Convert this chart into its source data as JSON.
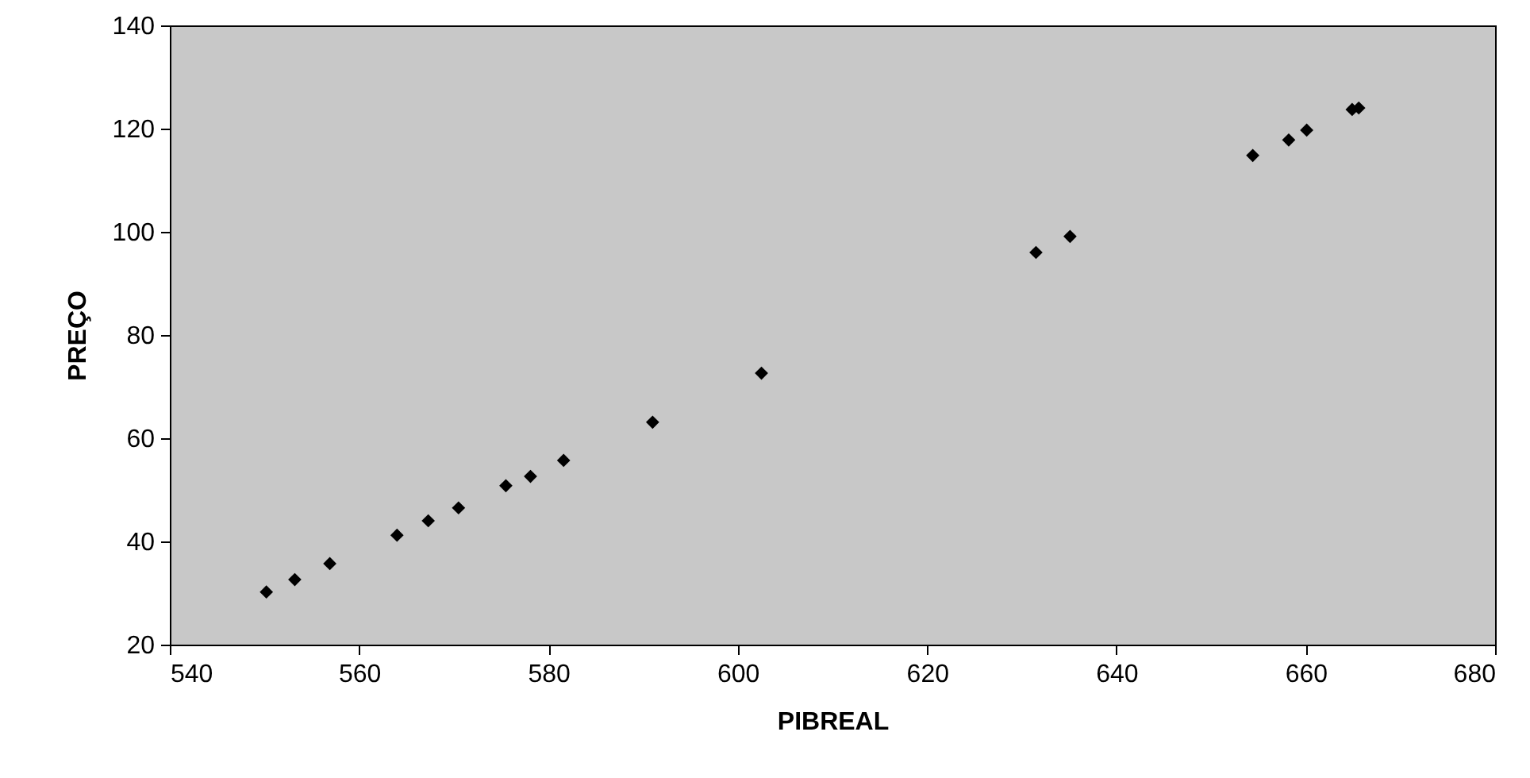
{
  "chart_data": {
    "type": "scatter",
    "xlabel": "PIBREAL",
    "ylabel": "PREÇO",
    "marker": "diamond",
    "grid": false,
    "x": [
      550.2,
      553.2,
      556.9,
      564.0,
      567.3,
      570.5,
      575.5,
      578.1,
      581.6,
      591.0,
      602.5,
      631.5,
      635.1,
      654.4,
      658.2,
      660.1,
      664.9,
      665.6
    ],
    "series": [
      {
        "color": "#000000",
        "values": [
          30.2,
          32.6,
          35.7,
          41.2,
          44.0,
          46.5,
          50.8,
          52.6,
          55.7,
          63.1,
          72.6,
          96.0,
          99.1,
          114.8,
          117.8,
          119.7,
          123.7,
          124.0
        ]
      }
    ],
    "xlim": [
      540,
      680
    ],
    "xticks": [
      540,
      560,
      580,
      600,
      620,
      640,
      660,
      680
    ],
    "ylim": [
      20,
      140
    ],
    "yticks": [
      20,
      40,
      60,
      80,
      100,
      120,
      140
    ]
  }
}
